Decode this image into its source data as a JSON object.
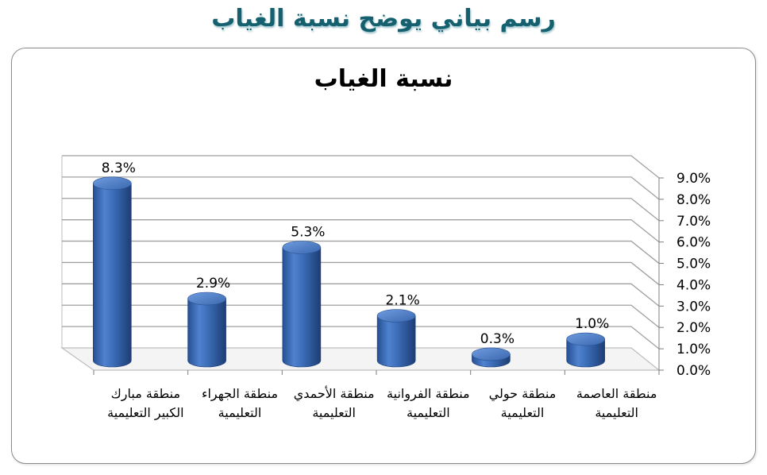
{
  "heading": "رسم بياني يوضح نسبة الغياب",
  "chart_data": {
    "type": "bar",
    "title": "نسبة الغياب",
    "categories": [
      "منطقة مبارك الكبير التعليمية",
      "منطقة الجهراء التعليمية",
      "منطقة الأحمدي التعليمية",
      "منطقة الفروانية التعليمية",
      "منطقة حولي التعليمية",
      "منطقة العاصمة التعليمية"
    ],
    "values": [
      8.3,
      2.9,
      5.3,
      2.1,
      0.3,
      1.0
    ],
    "data_labels": [
      "8.3%",
      "2.9%",
      "5.3%",
      "2.1%",
      "0.3%",
      "1.0%"
    ],
    "ylim": [
      0,
      9
    ],
    "yticks": [
      "0.0%",
      "1.0%",
      "2.0%",
      "3.0%",
      "4.0%",
      "5.0%",
      "6.0%",
      "7.0%",
      "8.0%",
      "9.0%"
    ],
    "grid": true,
    "y_axis_side": "right",
    "style": "3d-cylinder",
    "bar_color": "#3a6bb5",
    "xlabel": "",
    "ylabel": ""
  }
}
